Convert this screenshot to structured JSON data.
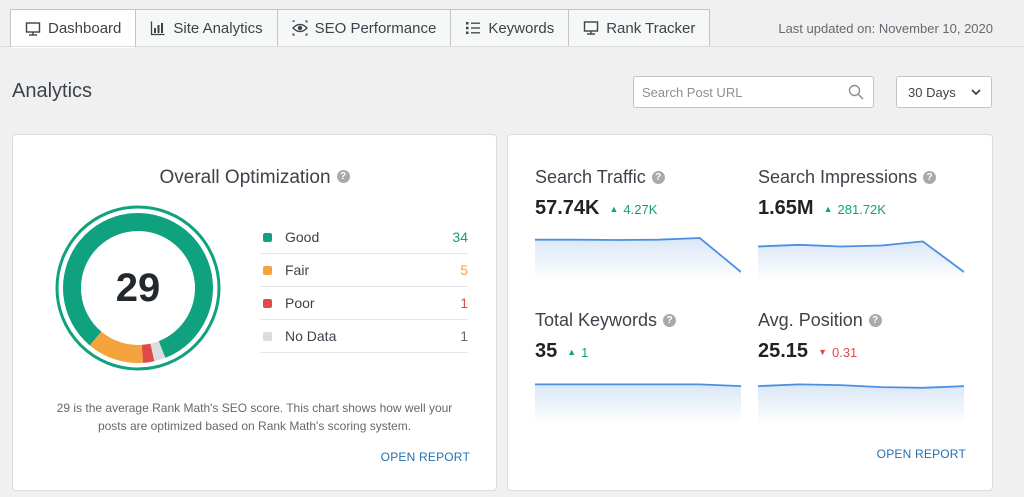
{
  "tabs": [
    {
      "label": "Dashboard",
      "icon": "monitor-icon",
      "active": true
    },
    {
      "label": "Site Analytics",
      "icon": "bar-chart-icon",
      "active": false
    },
    {
      "label": "SEO Performance",
      "icon": "eye-icon",
      "active": false
    },
    {
      "label": "Keywords",
      "icon": "list-icon",
      "active": false
    },
    {
      "label": "Rank Tracker",
      "icon": "monitor-icon",
      "active": false
    }
  ],
  "last_updated": "Last updated on: November 10, 2020",
  "page_title": "Analytics",
  "search": {
    "placeholder": "Search Post URL",
    "value": ""
  },
  "range_select": {
    "value": "30 Days"
  },
  "optimization": {
    "title": "Overall Optimization",
    "score": "29",
    "legend": [
      {
        "label": "Good",
        "value": "34",
        "color": "#10a27e"
      },
      {
        "label": "Fair",
        "value": "5",
        "color": "#f5a33c"
      },
      {
        "label": "Poor",
        "value": "1",
        "color": "#e24a4a"
      },
      {
        "label": "No Data",
        "value": "1",
        "color": "#dcdcde"
      }
    ],
    "description": "29 is the average Rank Math's SEO score. This chart shows how well your posts are optimized based on Rank Math's scoring system.",
    "open_report": "OPEN REPORT"
  },
  "metrics": [
    {
      "title": "Search Traffic",
      "value": "57.74K",
      "change": "4.27K",
      "direction": "up"
    },
    {
      "title": "Search Impressions",
      "value": "1.65M",
      "change": "281.72K",
      "direction": "up"
    },
    {
      "title": "Total Keywords",
      "value": "35",
      "change": "1",
      "direction": "up"
    },
    {
      "title": "Avg. Position",
      "value": "25.15",
      "change": "0.31",
      "direction": "down"
    }
  ],
  "metrics_open_report": "OPEN REPORT",
  "colors": {
    "accent": "#10a27e",
    "link": "#2271b1",
    "spark_line": "#4a90e2"
  }
}
